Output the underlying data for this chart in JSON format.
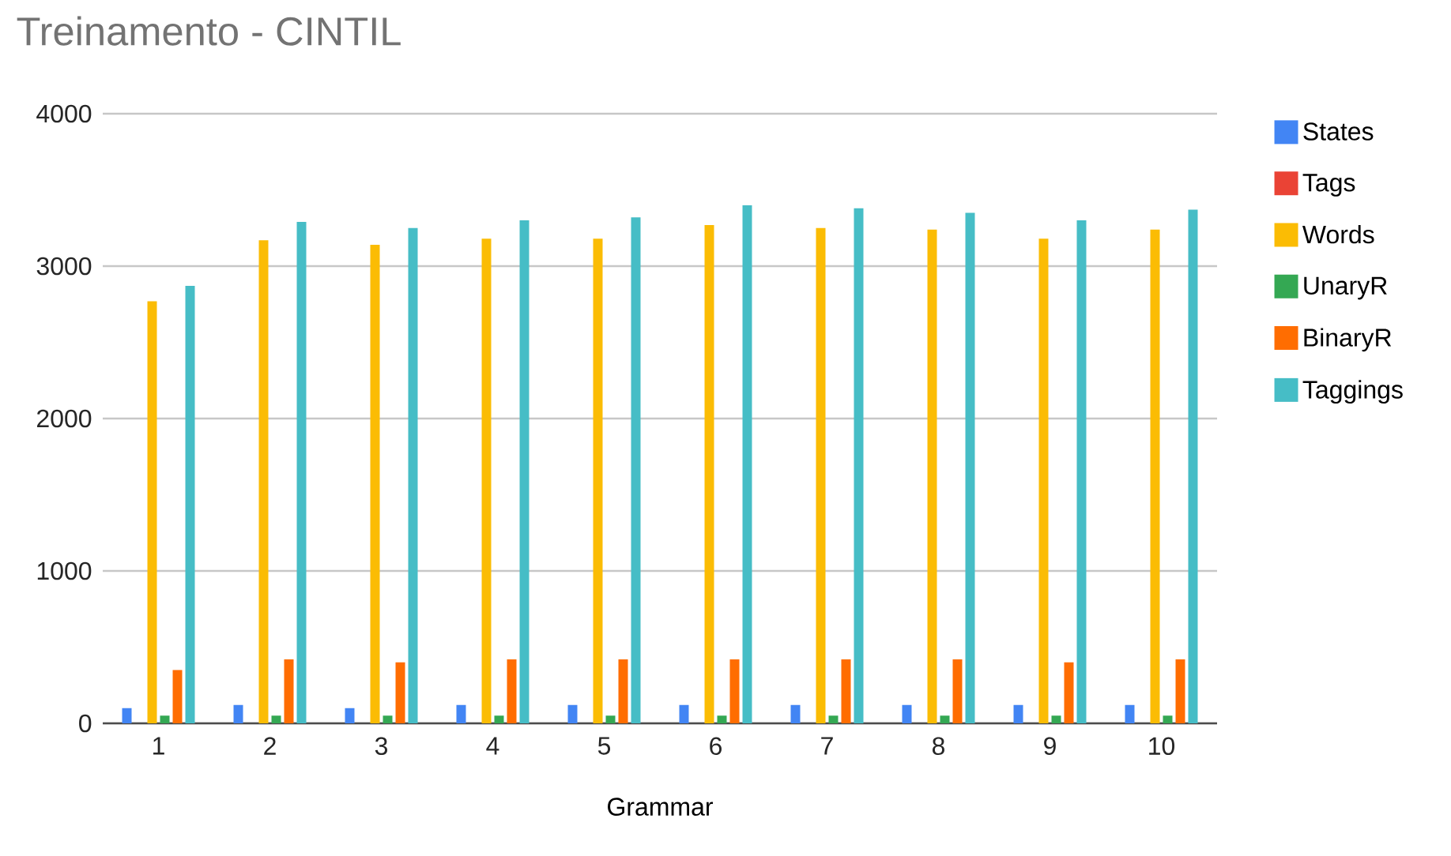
{
  "chart_data": {
    "type": "bar",
    "title": "Treinamento - CINTIL",
    "xlabel": "Grammar",
    "categories": [
      "1",
      "2",
      "3",
      "4",
      "5",
      "6",
      "7",
      "8",
      "9",
      "10"
    ],
    "series": [
      {
        "name": "States",
        "color": "#4285f4",
        "values": [
          100,
          120,
          100,
          120,
          120,
          120,
          120,
          120,
          120,
          120
        ]
      },
      {
        "name": "Tags",
        "color": "#ea4335",
        "values": [
          0,
          0,
          0,
          0,
          0,
          0,
          0,
          0,
          0,
          0
        ]
      },
      {
        "name": "Words",
        "color": "#fbbc04",
        "values": [
          2770,
          3170,
          3140,
          3180,
          3180,
          3270,
          3250,
          3240,
          3180,
          3240
        ]
      },
      {
        "name": "UnaryR",
        "color": "#34a853",
        "values": [
          50,
          50,
          50,
          50,
          50,
          50,
          50,
          50,
          50,
          50
        ]
      },
      {
        "name": "BinaryR",
        "color": "#ff6d01",
        "values": [
          350,
          420,
          400,
          420,
          420,
          420,
          420,
          420,
          400,
          420
        ]
      },
      {
        "name": "Taggings",
        "color": "#46bdc6",
        "values": [
          2870,
          3290,
          3250,
          3300,
          3320,
          3400,
          3380,
          3350,
          3300,
          3370
        ]
      }
    ],
    "ylim": [
      0,
      4000
    ],
    "yticks": [
      0,
      1000,
      2000,
      3000,
      4000
    ],
    "grid": "y",
    "legend": "right"
  }
}
